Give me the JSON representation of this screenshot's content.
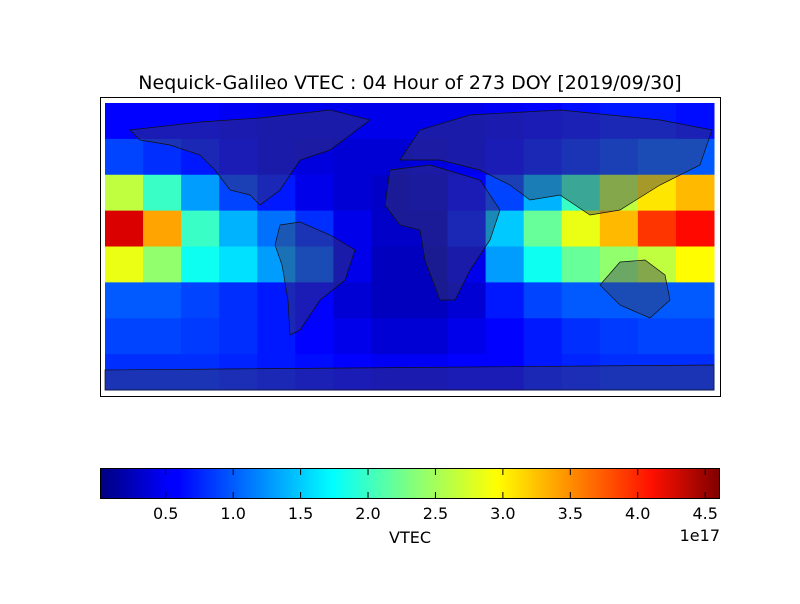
{
  "chart_data": {
    "type": "heatmap",
    "title": "Nequick-Galileo VTEC : 04 Hour of 273 DOY [2019/09/30]",
    "colormap": "jet",
    "values": [
      [
        0.6,
        0.6,
        0.6,
        0.55,
        0.5,
        0.5,
        0.5,
        0.5,
        0.5,
        0.5,
        0.55,
        0.6,
        0.65,
        0.7,
        0.7,
        0.65
      ],
      [
        0.9,
        0.8,
        0.7,
        0.6,
        0.5,
        0.45,
        0.4,
        0.4,
        0.45,
        0.5,
        0.6,
        0.7,
        0.8,
        0.9,
        1.0,
        1.0
      ],
      [
        2.6,
        2.0,
        1.3,
        0.9,
        0.7,
        0.5,
        0.4,
        0.35,
        0.4,
        0.6,
        0.9,
        1.4,
        2.0,
        2.6,
        3.0,
        3.2
      ],
      [
        4.2,
        3.3,
        2.0,
        1.4,
        1.1,
        0.8,
        0.5,
        0.35,
        0.35,
        0.7,
        1.5,
        2.2,
        2.8,
        3.2,
        3.8,
        4.0
      ],
      [
        2.8,
        2.4,
        1.8,
        1.6,
        1.3,
        1.0,
        0.5,
        0.3,
        0.3,
        0.5,
        1.3,
        1.8,
        2.2,
        2.4,
        2.6,
        2.9
      ],
      [
        1.0,
        1.0,
        0.9,
        0.8,
        0.7,
        0.6,
        0.4,
        0.3,
        0.3,
        0.4,
        0.7,
        0.9,
        1.0,
        1.0,
        1.0,
        1.0
      ],
      [
        0.9,
        0.9,
        0.85,
        0.8,
        0.7,
        0.6,
        0.5,
        0.4,
        0.4,
        0.5,
        0.6,
        0.7,
        0.8,
        0.85,
        0.9,
        0.9
      ],
      [
        0.8,
        0.8,
        0.8,
        0.75,
        0.7,
        0.65,
        0.6,
        0.55,
        0.55,
        0.6,
        0.6,
        0.7,
        0.75,
        0.8,
        0.8,
        0.8
      ]
    ],
    "colorbar": {
      "label": "VTEC",
      "offset_label": "1e17",
      "lim": [
        0.02,
        4.61
      ],
      "ticks": [
        0.5,
        {
          "value": 1,
          "label": "1.0"
        },
        1.5,
        {
          "value": 2,
          "label": "2.0"
        },
        2.5,
        {
          "value": 3,
          "label": "3.0"
        },
        3.5,
        {
          "value": 4,
          "label": "4.0"
        },
        4.5
      ]
    }
  }
}
